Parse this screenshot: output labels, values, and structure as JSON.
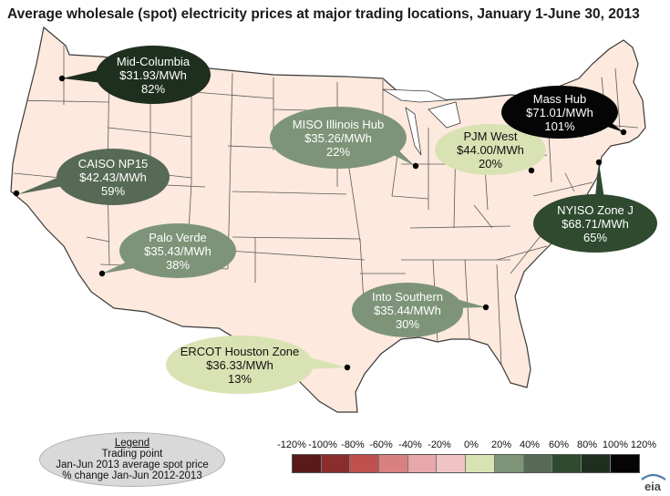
{
  "title": "Average wholesale (spot) electricity prices at major trading locations, January 1-June 30, 2013",
  "colors": {
    "land": "#fde9dd",
    "borders": "#3a3a3a",
    "legend_bg": "#d9d9d9"
  },
  "locations": [
    {
      "name": "Mid-Columbia",
      "price": "$31.93/MWh",
      "change": "82%",
      "color": "#1f2f1f",
      "text_color": "#ffffff"
    },
    {
      "name": "MISO Illinois Hub",
      "price": "$35.26/MWh",
      "change": "22%",
      "color": "#7d9478",
      "text_color": "#ffffff"
    },
    {
      "name": "PJM West",
      "price": "$44.00/MWh",
      "change": "20%",
      "color": "#d9e2b3",
      "text_color": "#111111"
    },
    {
      "name": "Mass Hub",
      "price": "$71.01/MWh",
      "change": "101%",
      "color": "#050505",
      "text_color": "#ffffff"
    },
    {
      "name": "CAISO NP15",
      "price": "$42.43/MWh",
      "change": "59%",
      "color": "#566a55",
      "text_color": "#ffffff"
    },
    {
      "name": "NYISO Zone J",
      "price": "$68.71/MWh",
      "change": "65%",
      "color": "#2f4a2f",
      "text_color": "#ffffff"
    },
    {
      "name": "Palo Verde",
      "price": "$35.43/MWh",
      "change": "38%",
      "color": "#7d9478",
      "text_color": "#ffffff"
    },
    {
      "name": "Into Southern",
      "price": "$35.44/MWh",
      "change": "30%",
      "color": "#7d9478",
      "text_color": "#ffffff"
    },
    {
      "name": "ERCOT Houston Zone",
      "price": "$36.33/MWh",
      "change": "13%",
      "color": "#d9e2b3",
      "text_color": "#111111"
    }
  ],
  "legend": {
    "title": "Legend",
    "line1": "Trading point",
    "line2": "Jan-Jun 2013 average spot price",
    "line3": "% change Jan-Jun 2012-2013"
  },
  "scale": {
    "labels": [
      "-120%",
      "-100%",
      "-80%",
      "-60%",
      "-40%",
      "-20%",
      "0%",
      "20%",
      "40%",
      "60%",
      "80%",
      "100%",
      "120%"
    ],
    "colors": [
      "#5a1a1a",
      "#8b2d2d",
      "#c0504d",
      "#d98080",
      "#e6a8a8",
      "#f0c4c4",
      "#d9e2b3",
      "#7d9478",
      "#566a55",
      "#2f4a2f",
      "#1f2f1f",
      "#050505"
    ]
  },
  "logo_text": "eia"
}
